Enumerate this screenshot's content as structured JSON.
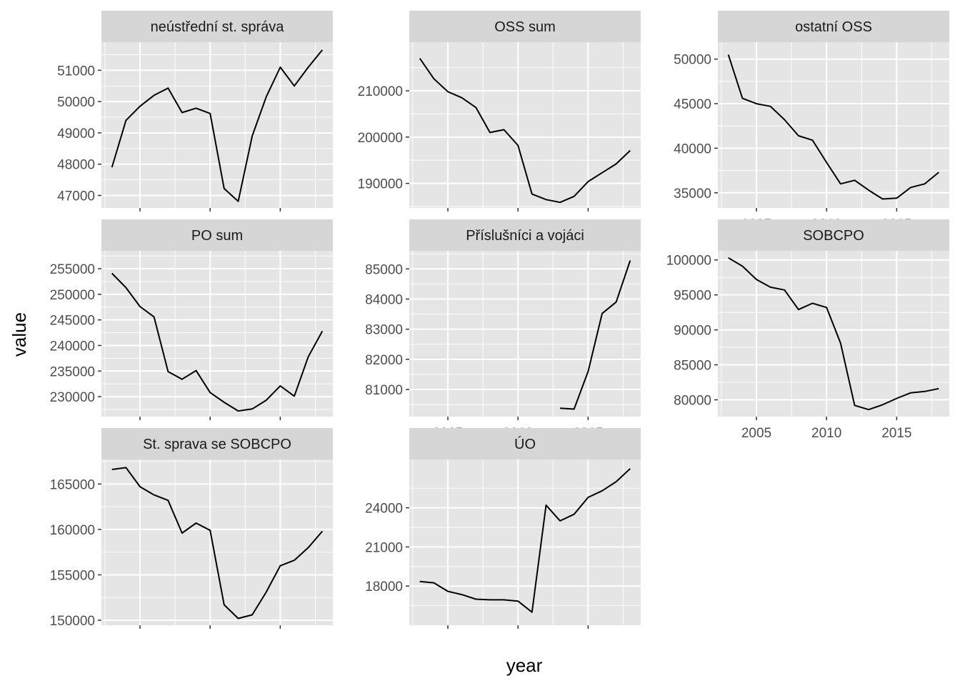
{
  "chart_data": {
    "type": "line",
    "layout": "facet_wrap",
    "xlabel": "year",
    "ylabel": "value",
    "x_ticks": [
      2005,
      2010,
      2015
    ],
    "xlim": [
      2002.25,
      2018.75
    ],
    "colors": {
      "panel_background": "#e5e5e5",
      "strip_background": "#d6d6d6",
      "grid": "#ffffff",
      "line": "#000000"
    },
    "facets": [
      {
        "name": "neústřední st. správa",
        "ylim": [
          46600,
          51900
        ],
        "y_ticks": [
          47000,
          48000,
          49000,
          50000,
          51000
        ],
        "x": [
          2003,
          2004,
          2005,
          2006,
          2007,
          2008,
          2009,
          2010,
          2011,
          2012,
          2013,
          2014,
          2015,
          2016,
          2017,
          2018
        ],
        "values": [
          47900,
          49400,
          49850,
          50200,
          50430,
          49650,
          49790,
          49620,
          47220,
          46810,
          48900,
          50150,
          51100,
          50500,
          51100,
          51650
        ]
      },
      {
        "name": "OSS sum",
        "ylim": [
          184700,
          220500
        ],
        "y_ticks": [
          190000,
          200000,
          210000
        ],
        "x": [
          2003,
          2004,
          2005,
          2006,
          2007,
          2008,
          2009,
          2010,
          2011,
          2012,
          2013,
          2014,
          2015,
          2016,
          2017,
          2018
        ],
        "values": [
          217000,
          212600,
          209800,
          208500,
          206400,
          201000,
          201600,
          198200,
          187700,
          186500,
          185900,
          187200,
          190400,
          192300,
          194200,
          197100
        ]
      },
      {
        "name": "ostatní OSS",
        "ylim": [
          33300,
          51900
        ],
        "y_ticks": [
          35000,
          40000,
          45000,
          50000
        ],
        "x": [
          2003,
          2004,
          2005,
          2006,
          2007,
          2008,
          2009,
          2010,
          2011,
          2012,
          2013,
          2014,
          2015,
          2016,
          2017,
          2018
        ],
        "values": [
          50500,
          45600,
          45000,
          44700,
          43200,
          41400,
          40900,
          38400,
          36000,
          36400,
          35300,
          34300,
          34400,
          35600,
          36000,
          37300
        ]
      },
      {
        "name": "PO sum",
        "ylim": [
          226100,
          258500
        ],
        "y_ticks": [
          230000,
          235000,
          240000,
          245000,
          250000,
          255000
        ],
        "x": [
          2003,
          2004,
          2005,
          2006,
          2007,
          2008,
          2009,
          2010,
          2011,
          2012,
          2013,
          2014,
          2015,
          2016,
          2017,
          2018
        ],
        "values": [
          254100,
          251300,
          247600,
          245600,
          234900,
          233400,
          235100,
          230800,
          228900,
          227200,
          227600,
          229300,
          232100,
          230100,
          237800,
          242800
        ]
      },
      {
        "name": "Příslušníci a vojáci",
        "ylim": [
          80100,
          85600
        ],
        "y_ticks": [
          81000,
          82000,
          83000,
          84000,
          85000
        ],
        "x": [
          2013,
          2014,
          2015,
          2016,
          2017,
          2018
        ],
        "values": [
          80380,
          80350,
          81600,
          83520,
          83900,
          85280
        ]
      },
      {
        "name": "SOBCPO",
        "ylim": [
          77600,
          101300
        ],
        "y_ticks": [
          80000,
          85000,
          90000,
          95000,
          100000
        ],
        "x": [
          2003,
          2004,
          2005,
          2006,
          2007,
          2008,
          2009,
          2010,
          2011,
          2012,
          2013,
          2014,
          2015,
          2016,
          2017,
          2018
        ],
        "values": [
          100300,
          99100,
          97200,
          96100,
          95700,
          92900,
          93800,
          93200,
          88100,
          79200,
          78600,
          79300,
          80200,
          81000,
          81200,
          81600
        ]
      },
      {
        "name": "St. sprava se SOBCPO",
        "ylim": [
          149450,
          167700
        ],
        "y_ticks": [
          150000,
          155000,
          160000,
          165000
        ],
        "x": [
          2003,
          2004,
          2005,
          2006,
          2007,
          2008,
          2009,
          2010,
          2011,
          2012,
          2013,
          2014,
          2015,
          2016,
          2017,
          2018
        ],
        "values": [
          166600,
          166800,
          164700,
          163800,
          163200,
          159600,
          160700,
          159900,
          151700,
          150200,
          150600,
          153100,
          156000,
          156600,
          158000,
          159800
        ]
      },
      {
        "name": "ÚO",
        "ylim": [
          15000,
          27700
        ],
        "y_ticks": [
          18000,
          21000,
          24000
        ],
        "x": [
          2003,
          2004,
          2005,
          2006,
          2007,
          2008,
          2009,
          2010,
          2011,
          2012,
          2013,
          2014,
          2015,
          2016,
          2017,
          2018
        ],
        "values": [
          18350,
          18250,
          17600,
          17350,
          17000,
          16950,
          16950,
          16850,
          16000,
          24200,
          23000,
          23500,
          24800,
          25300,
          26000,
          27000
        ]
      }
    ]
  }
}
